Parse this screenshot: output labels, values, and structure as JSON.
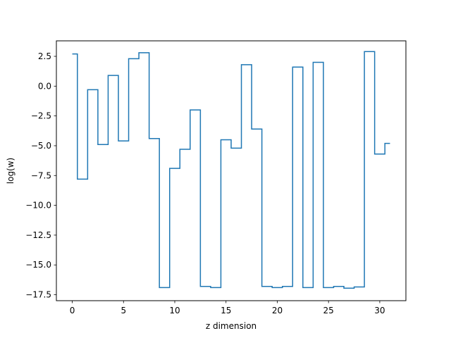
{
  "chart_data": {
    "type": "line",
    "drawstyle": "steps-mid",
    "title": "",
    "xlabel": "z dimension",
    "ylabel": "log(w)",
    "xlim": [
      -1.55,
      32.55
    ],
    "ylim": [
      -18.0,
      3.8
    ],
    "grid": false,
    "line_color": "#1f77b4",
    "x_ticks": [
      0,
      5,
      10,
      15,
      20,
      25,
      30
    ],
    "x_tick_labels": [
      "0",
      "5",
      "10",
      "15",
      "20",
      "25",
      "30"
    ],
    "y_ticks": [
      2.5,
      0.0,
      -2.5,
      -5.0,
      -7.5,
      -10.0,
      -12.5,
      -15.0,
      -17.5
    ],
    "y_tick_labels": [
      "2.5",
      "0.0",
      "−2.5",
      "−5.0",
      "−7.5",
      "−10.0",
      "−12.5",
      "−15.0",
      "−17.5"
    ],
    "series": [
      {
        "x": [
          0,
          1,
          2,
          3,
          4,
          5,
          6,
          7,
          8,
          9,
          10,
          11,
          12,
          13,
          14,
          15,
          16,
          17,
          18,
          19,
          20,
          21,
          22,
          23,
          24,
          25,
          26,
          27,
          28,
          29,
          30,
          31
        ],
        "values": [
          2.7,
          -7.8,
          -0.3,
          -4.9,
          0.9,
          -4.6,
          2.3,
          2.8,
          -4.4,
          -16.9,
          -6.9,
          -5.3,
          -2.0,
          -16.8,
          -16.9,
          -4.5,
          -5.2,
          1.8,
          -3.6,
          -16.8,
          -16.9,
          -16.8,
          1.6,
          -16.9,
          2.0,
          -16.9,
          -16.8,
          -16.95,
          -16.85,
          2.9,
          -5.7,
          -4.8
        ]
      }
    ]
  }
}
